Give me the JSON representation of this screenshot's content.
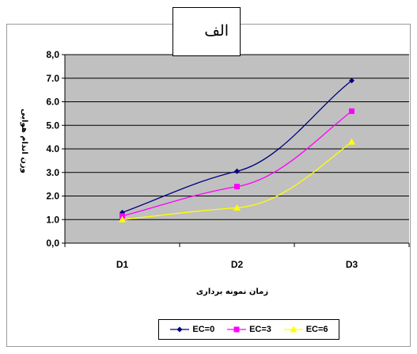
{
  "panel_label": "الف",
  "chart_data": {
    "type": "line",
    "categories": [
      "D1",
      "D2",
      "D3"
    ],
    "xlabel": "زمان نمونه برداری",
    "ylabel": "وزن اندام هوایی",
    "ylim": [
      0,
      8
    ],
    "yticks": [
      "0,0",
      "1.0",
      "2.0",
      "3.0",
      "4.0",
      "5.0",
      "6.0",
      "7.0",
      "8,0"
    ],
    "grid": true,
    "plot_background": "#c0c0c0",
    "legend_position": "bottom",
    "series": [
      {
        "name": "EC=0",
        "values": [
          1.3,
          3.05,
          6.9
        ],
        "color": "#000080",
        "marker": "diamond"
      },
      {
        "name": "EC=3",
        "values": [
          1.15,
          2.4,
          5.6
        ],
        "color": "#ff00ff",
        "marker": "square"
      },
      {
        "name": "EC=6",
        "values": [
          1.0,
          1.5,
          4.3
        ],
        "color": "#ffff00",
        "marker": "triangle"
      }
    ]
  }
}
